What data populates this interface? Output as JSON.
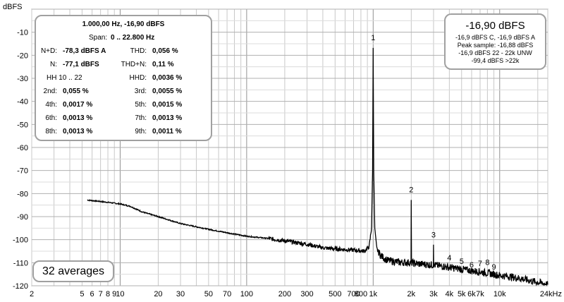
{
  "chart_data": {
    "type": "line",
    "ylabel": "dBFS",
    "xlabel": "",
    "x_scale": "log",
    "xlim": [
      2,
      24000
    ],
    "ylim": [
      -120,
      0
    ],
    "grid": true,
    "y_ticks": [
      -10,
      -20,
      -30,
      -40,
      -50,
      -60,
      -70,
      -80,
      -90,
      -100,
      -110,
      -120
    ],
    "y_tick_labels": [
      "-10",
      "-20",
      "-30",
      "-40",
      "-50",
      "-60",
      "-70",
      "-80",
      "-90",
      "-100",
      "-110",
      "-120"
    ],
    "x_ticks": [
      2,
      5,
      6,
      7,
      8,
      9,
      10,
      20,
      30,
      50,
      70,
      100,
      200,
      300,
      500,
      700,
      800,
      1000,
      2000,
      3000,
      4000,
      5000,
      6000,
      7000,
      10000,
      24000
    ],
    "x_tick_labels": [
      "2",
      "5",
      "6",
      "7",
      "8",
      "9",
      "10",
      "20",
      "30",
      "50",
      "70",
      "100",
      "200",
      "300",
      "500",
      "700",
      "800",
      "1k",
      "2k",
      "3k",
      "4k",
      "5k",
      "6k",
      "7k",
      "10k",
      "24kHz"
    ],
    "series": [
      {
        "x": [
          5.5,
          8,
          10,
          12,
          15,
          20,
          30,
          50,
          70,
          100,
          150,
          200,
          300,
          400,
          500,
          700,
          850,
          930,
          970,
          990,
          1000,
          1010,
          1030,
          1070,
          1150,
          1300,
          1600,
          1990,
          2000,
          2010,
          2300,
          2990,
          3000,
          3010,
          4000,
          5000,
          6000,
          7000,
          8000,
          9000,
          10000,
          12000,
          15000,
          18000,
          20000,
          24000
        ],
        "y": [
          -82.8,
          -83.8,
          -84.5,
          -85.5,
          -88,
          -90,
          -93,
          -95.5,
          -97,
          -98.5,
          -99.5,
          -100.5,
          -102,
          -103.5,
          -104,
          -104.5,
          -105,
          -103,
          -95,
          -70,
          -16.9,
          -70,
          -95,
          -104,
          -107,
          -109,
          -109.8,
          -110,
          -82.8,
          -110,
          -110.5,
          -111,
          -102,
          -111,
          -112,
          -112.8,
          -113.5,
          -114,
          -114.5,
          -115,
          -115.5,
          -116,
          -117,
          -118,
          -118.5,
          -119.5
        ]
      }
    ],
    "harmonic_labels": [
      {
        "label": "1",
        "x": 1000,
        "y": -13.5
      },
      {
        "label": "2",
        "x": 2000,
        "y": -79.5
      },
      {
        "label": "3",
        "x": 3000,
        "y": -99
      },
      {
        "label": "4",
        "x": 4000,
        "y": -109
      },
      {
        "label": "5",
        "x": 5000,
        "y": -110.5
      },
      {
        "label": "6",
        "x": 6000,
        "y": -112
      },
      {
        "label": "7",
        "x": 7000,
        "y": -111.5
      },
      {
        "label": "8",
        "x": 8000,
        "y": -111
      },
      {
        "label": "9",
        "x": 9000,
        "y": -113
      }
    ]
  },
  "info": {
    "title": "1.000,00 Hz, -16,90 dBFS",
    "span_label": "Span:",
    "span_value": "0 .. 22.800 Hz",
    "nd_label": "N+D:",
    "nd_value": "-78,3 dBFS A",
    "thd_label": "THD:",
    "thd_value": "0,056 %",
    "n_label": "N:",
    "n_value": "-77,1 dBFS",
    "thdn_label": "THD+N:",
    "thdn_value": "0,11 %",
    "hh_label": "HH 10 .. 22",
    "hhd_label": "HHD:",
    "hhd_value": "0,0036 %",
    "h2_label": "2nd:",
    "h2_value": "0,055 %",
    "h3_label": "3rd:",
    "h3_value": "0,0055 %",
    "h4_label": "4th:",
    "h4_value": "0,0017 %",
    "h5_label": "5th:",
    "h5_value": "0,0015 %",
    "h6_label": "6th:",
    "h6_value": "0,0013 %",
    "h7_label": "7th:",
    "h7_value": "0,0013 %",
    "h8_label": "8th:",
    "h8_value": "0,0013 %",
    "h9_label": "9th:",
    "h9_value": "0,0011 %"
  },
  "peak": {
    "headline": "-16,90 dBFS",
    "line1": "-16,9 dBFS C, -16,9 dBFS A",
    "line2": "Peak sample: -16,88 dBFS",
    "line3": "-16,9 dBFS 22 - 22k UNW",
    "line4": "-99,4 dBFS >22k"
  },
  "averages": {
    "label": "32 averages"
  },
  "colors": {
    "grid": "#c8c8c8",
    "trace": "#000000",
    "box_border": "#a0a0a0"
  }
}
